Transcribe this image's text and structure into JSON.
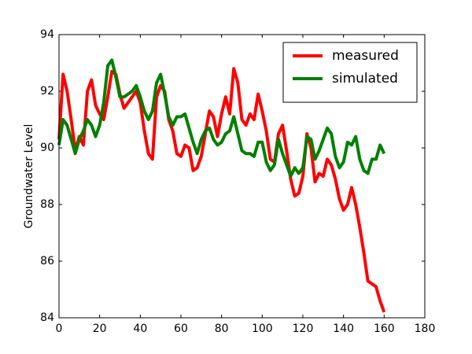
{
  "chart_data": {
    "type": "line",
    "x": [
      0,
      2,
      4,
      6,
      8,
      10,
      12,
      14,
      16,
      18,
      20,
      22,
      24,
      26,
      28,
      30,
      32,
      34,
      36,
      38,
      40,
      42,
      44,
      46,
      48,
      50,
      52,
      54,
      56,
      58,
      60,
      62,
      64,
      66,
      68,
      70,
      72,
      74,
      76,
      78,
      80,
      82,
      84,
      86,
      88,
      90,
      92,
      94,
      96,
      98,
      100,
      102,
      104,
      106,
      108,
      110,
      112,
      114,
      116,
      118,
      120,
      122,
      124,
      126,
      128,
      130,
      132,
      134,
      136,
      138,
      140,
      142,
      144,
      146,
      148,
      150,
      152,
      154,
      156,
      158,
      160
    ],
    "series": [
      {
        "name": "measured",
        "color": "#ff0000",
        "values": [
          90.3,
          92.6,
          92.0,
          91.0,
          89.9,
          90.4,
          90.1,
          92.0,
          92.4,
          91.5,
          91.2,
          91.0,
          91.8,
          92.7,
          92.6,
          91.9,
          91.4,
          91.6,
          91.8,
          92.0,
          91.6,
          90.6,
          89.8,
          89.6,
          91.8,
          92.2,
          92.0,
          91.0,
          90.6,
          89.8,
          89.7,
          90.1,
          90.0,
          89.2,
          89.3,
          89.7,
          90.5,
          91.3,
          91.1,
          90.4,
          91.2,
          91.8,
          91.2,
          92.8,
          92.3,
          91.0,
          90.8,
          91.2,
          91.0,
          91.9,
          91.3,
          90.6,
          89.6,
          89.5,
          90.5,
          90.8,
          89.9,
          88.9,
          88.3,
          88.4,
          89.0,
          90.5,
          90.0,
          88.8,
          89.1,
          89.0,
          89.6,
          89.4,
          88.9,
          88.2,
          87.8,
          88.0,
          88.6,
          88.0,
          87.2,
          86.3,
          85.3,
          85.2,
          85.1,
          84.6,
          84.2
        ]
      },
      {
        "name": "simulated",
        "color": "#008000",
        "values": [
          90.1,
          91.0,
          90.8,
          90.3,
          89.8,
          90.3,
          90.6,
          91.0,
          90.8,
          90.4,
          90.8,
          91.6,
          92.9,
          93.1,
          92.5,
          91.8,
          91.8,
          91.9,
          92.0,
          92.2,
          91.8,
          91.3,
          91.0,
          91.3,
          92.3,
          92.6,
          91.9,
          91.1,
          90.8,
          91.1,
          91.1,
          91.2,
          90.7,
          90.2,
          89.8,
          90.3,
          90.6,
          90.7,
          90.3,
          90.1,
          90.2,
          90.5,
          90.6,
          91.1,
          90.5,
          89.9,
          89.8,
          89.8,
          89.7,
          90.2,
          90.2,
          89.5,
          89.2,
          89.4,
          90.3,
          89.8,
          89.4,
          89.0,
          89.3,
          89.1,
          89.3,
          90.4,
          90.3,
          89.6,
          89.9,
          90.3,
          90.7,
          90.5,
          89.7,
          89.3,
          89.5,
          90.2,
          90.1,
          90.4,
          89.6,
          89.2,
          89.1,
          89.6,
          89.6,
          90.1,
          89.8
        ]
      }
    ],
    "ylabel": "Groundwater Level",
    "xlim": [
      0,
      180
    ],
    "xticks": [
      0,
      20,
      40,
      60,
      80,
      100,
      120,
      140,
      160,
      180
    ],
    "ylim": [
      84,
      94
    ],
    "yticks": [
      84,
      86,
      88,
      90,
      92,
      94
    ],
    "legend": "upper right"
  }
}
